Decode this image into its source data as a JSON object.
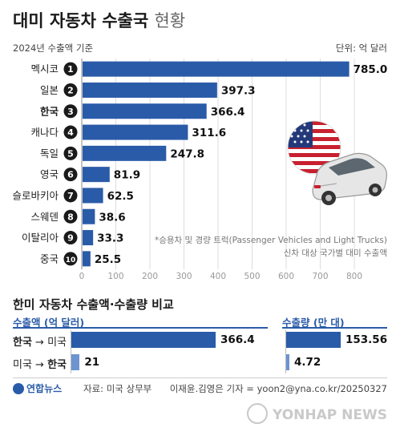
{
  "title_main": "대미 자동차 수출국",
  "title_light": "현황",
  "subtitle": "2024년 수출액 기준",
  "unit": "단위: 억 달러",
  "chart_data": [
    {
      "type": "bar",
      "orientation": "horizontal",
      "title": "대미 자동차 수출국 현황",
      "subtitle": "2024년 수출액 기준",
      "unit": "억 달러",
      "categories": [
        "멕시코",
        "일본",
        "한국",
        "캐나다",
        "독일",
        "영국",
        "슬로바키아",
        "스웨덴",
        "이탈리아",
        "중국"
      ],
      "ranks": [
        "1",
        "2",
        "3",
        "4",
        "5",
        "6",
        "7",
        "8",
        "9",
        "10"
      ],
      "values": [
        785.0,
        397.3,
        366.4,
        311.6,
        247.8,
        81.9,
        62.5,
        38.6,
        33.3,
        25.5
      ],
      "value_labels": [
        "785.0",
        "397.3",
        "366.4",
        "311.6",
        "247.8",
        "81.9",
        "62.5",
        "38.6",
        "33.3",
        "25.5"
      ],
      "xlim": [
        0,
        800
      ],
      "xticks": [
        "0",
        "100",
        "200",
        "300",
        "400",
        "500",
        "600",
        "700",
        "800"
      ],
      "grid": true,
      "highlight": "한국"
    },
    {
      "type": "bar",
      "orientation": "horizontal",
      "title": "한미 자동차 수출액·수출량 비교",
      "categories": [
        "한국 → 미국",
        "미국 → 한국"
      ],
      "series": [
        {
          "name": "수출액 (억 달러)",
          "values": [
            366.4,
            21
          ]
        },
        {
          "name": "수출량 (만 대)",
          "values": [
            153.56,
            4.72
          ]
        }
      ]
    }
  ],
  "note_line1": "*승용차 및 경량 트럭(Passenger Vehicles and Light Trucks)",
  "note_line2": "신차 대상 국가별 대미 수출액",
  "comparison": {
    "title": "한미 자동차 수출액·수출량 비교",
    "legend_amount": "수출액 (억 달러)",
    "legend_volume": "수출량 (만 대)",
    "rows": [
      {
        "from": "한국",
        "arrow": " → ",
        "to": "미국",
        "amount_label": "366.4",
        "volume_label": "153.56"
      },
      {
        "from": "미국",
        "arrow": " → ",
        "to": "한국",
        "amount_label": "21",
        "volume_label": "4.72"
      }
    ]
  },
  "logo_text": "연합뉴스",
  "source": "자료: 미국 상무부",
  "credit": "이재윤.김영은 기자 = yoon2@yna.co.kr/20250327",
  "watermark": "YONHAP NEWS",
  "colors": {
    "bar": "#2a5ba8",
    "bar_light": "#6d93d0",
    "rank_badge": "#1a1a1a",
    "grid": "#dddddd"
  },
  "icons": [
    "us-flag-icon",
    "car-icon"
  ]
}
